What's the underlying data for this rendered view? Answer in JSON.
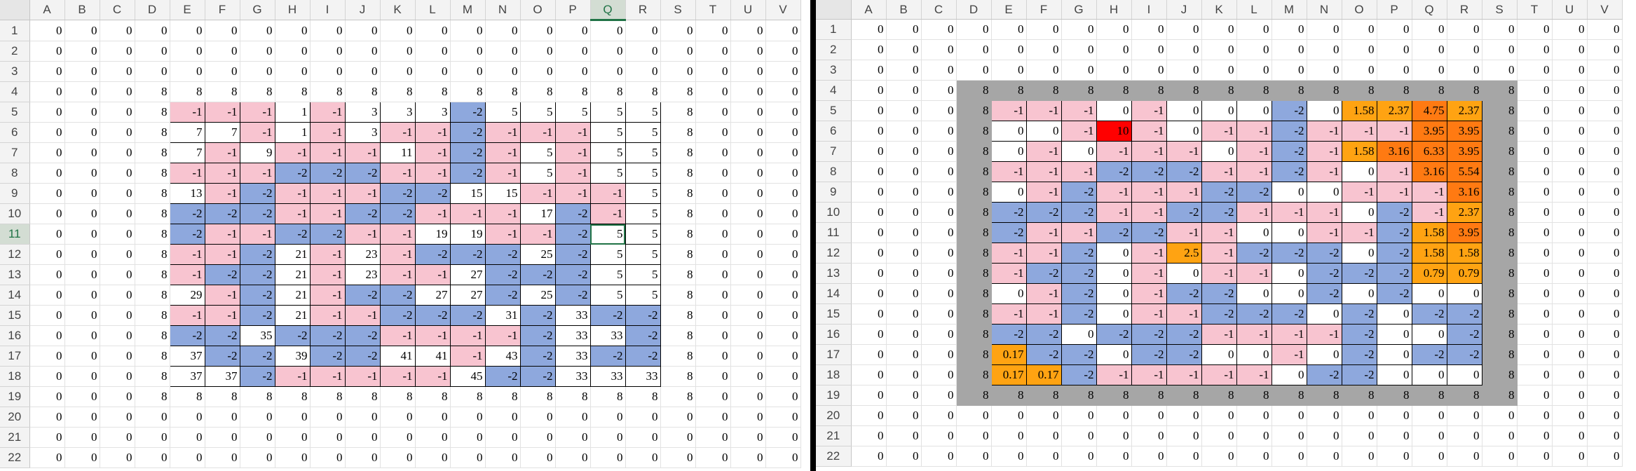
{
  "columns": [
    "A",
    "B",
    "C",
    "D",
    "E",
    "F",
    "G",
    "H",
    "I",
    "J",
    "K",
    "L",
    "M",
    "N",
    "O",
    "P",
    "Q",
    "R",
    "S",
    "T",
    "U",
    "V"
  ],
  "left_sheet": {
    "selected_column": "Q",
    "selected_row": 11,
    "active_cell": "Q11",
    "rows": [
      {
        "n": 1,
        "cells": [
          "0",
          "0",
          "0",
          "0",
          "0",
          "0",
          "0",
          "0",
          "0",
          "0",
          "0",
          "0",
          "0",
          "0",
          "0",
          "0",
          "0",
          "0",
          "0",
          "0",
          "0",
          "0"
        ]
      },
      {
        "n": 2,
        "cells": [
          "0",
          "0",
          "0",
          "0",
          "0",
          "0",
          "0",
          "0",
          "0",
          "0",
          "0",
          "0",
          "0",
          "0",
          "0",
          "0",
          "0",
          "0",
          "0",
          "0",
          "0",
          "0"
        ]
      },
      {
        "n": 3,
        "cells": [
          "0",
          "0",
          "0",
          "0",
          "0",
          "0",
          "0",
          "0",
          "0",
          "0",
          "0",
          "0",
          "0",
          "0",
          "0",
          "0",
          "0",
          "0",
          "0",
          "0",
          "0",
          "0"
        ]
      },
      {
        "n": 4,
        "cells": [
          "0",
          "0",
          "0",
          "8",
          "8",
          "8",
          "8",
          "8",
          "8",
          "8",
          "8",
          "8",
          "8",
          "8",
          "8",
          "8",
          "8",
          "8",
          "8",
          "0",
          "0",
          "0"
        ]
      },
      {
        "n": 5,
        "cells": [
          "0",
          "0",
          "0",
          "8",
          "-1",
          "-1",
          "-1",
          "1",
          "-1",
          "3",
          "3",
          "3",
          "-2",
          "5",
          "5",
          "5",
          "5",
          "5",
          "8",
          "0",
          "0",
          "0"
        ]
      },
      {
        "n": 6,
        "cells": [
          "0",
          "0",
          "0",
          "8",
          "7",
          "7",
          "-1",
          "1",
          "-1",
          "3",
          "-1",
          "-1",
          "-2",
          "-1",
          "-1",
          "-1",
          "5",
          "5",
          "8",
          "0",
          "0",
          "0"
        ]
      },
      {
        "n": 7,
        "cells": [
          "0",
          "0",
          "0",
          "8",
          "7",
          "-1",
          "9",
          "-1",
          "-1",
          "-1",
          "11",
          "-1",
          "-2",
          "-1",
          "5",
          "-1",
          "5",
          "5",
          "8",
          "0",
          "0",
          "0"
        ]
      },
      {
        "n": 8,
        "cells": [
          "0",
          "0",
          "0",
          "8",
          "-1",
          "-1",
          "-1",
          "-2",
          "-2",
          "-2",
          "-1",
          "-1",
          "-2",
          "-1",
          "5",
          "-1",
          "5",
          "5",
          "8",
          "0",
          "0",
          "0"
        ]
      },
      {
        "n": 9,
        "cells": [
          "0",
          "0",
          "0",
          "8",
          "13",
          "-1",
          "-2",
          "-1",
          "-1",
          "-1",
          "-2",
          "-2",
          "15",
          "15",
          "-1",
          "-1",
          "-1",
          "5",
          "8",
          "0",
          "0",
          "0"
        ]
      },
      {
        "n": 10,
        "cells": [
          "0",
          "0",
          "0",
          "8",
          "-2",
          "-2",
          "-2",
          "-1",
          "-1",
          "-2",
          "-2",
          "-1",
          "-1",
          "-1",
          "17",
          "-2",
          "-1",
          "5",
          "8",
          "0",
          "0",
          "0"
        ]
      },
      {
        "n": 11,
        "cells": [
          "0",
          "0",
          "0",
          "8",
          "-2",
          "-1",
          "-1",
          "-2",
          "-2",
          "-1",
          "-1",
          "19",
          "19",
          "-1",
          "-1",
          "-2",
          "5",
          "5",
          "8",
          "0",
          "0",
          "0"
        ]
      },
      {
        "n": 12,
        "cells": [
          "0",
          "0",
          "0",
          "8",
          "-1",
          "-1",
          "-2",
          "21",
          "-1",
          "23",
          "-1",
          "-2",
          "-2",
          "-2",
          "25",
          "-2",
          "5",
          "5",
          "8",
          "0",
          "0",
          "0"
        ]
      },
      {
        "n": 13,
        "cells": [
          "0",
          "0",
          "0",
          "8",
          "-1",
          "-2",
          "-2",
          "21",
          "-1",
          "23",
          "-1",
          "-1",
          "27",
          "-2",
          "-2",
          "-2",
          "5",
          "5",
          "8",
          "0",
          "0",
          "0"
        ]
      },
      {
        "n": 14,
        "cells": [
          "0",
          "0",
          "0",
          "8",
          "29",
          "-1",
          "-2",
          "21",
          "-1",
          "-2",
          "-2",
          "27",
          "27",
          "-2",
          "25",
          "-2",
          "5",
          "5",
          "8",
          "0",
          "0",
          "0"
        ]
      },
      {
        "n": 15,
        "cells": [
          "0",
          "0",
          "0",
          "8",
          "-1",
          "-1",
          "-2",
          "21",
          "-1",
          "-1",
          "-2",
          "-2",
          "-2",
          "31",
          "-2",
          "33",
          "-2",
          "-2",
          "8",
          "0",
          "0",
          "0"
        ]
      },
      {
        "n": 16,
        "cells": [
          "0",
          "0",
          "0",
          "8",
          "-2",
          "-2",
          "35",
          "-2",
          "-2",
          "-2",
          "-1",
          "-1",
          "-1",
          "-1",
          "-2",
          "33",
          "33",
          "-2",
          "8",
          "0",
          "0",
          "0"
        ]
      },
      {
        "n": 17,
        "cells": [
          "0",
          "0",
          "0",
          "8",
          "37",
          "-2",
          "-2",
          "39",
          "-2",
          "-2",
          "41",
          "41",
          "-1",
          "43",
          "-2",
          "33",
          "-2",
          "-2",
          "8",
          "0",
          "0",
          "0"
        ]
      },
      {
        "n": 18,
        "cells": [
          "0",
          "0",
          "0",
          "8",
          "37",
          "37",
          "-2",
          "-1",
          "-1",
          "-1",
          "-1",
          "-1",
          "45",
          "-2",
          "-2",
          "33",
          "33",
          "33",
          "8",
          "0",
          "0",
          "0"
        ]
      },
      {
        "n": 19,
        "cells": [
          "0",
          "0",
          "0",
          "8",
          "8",
          "8",
          "8",
          "8",
          "8",
          "8",
          "8",
          "8",
          "8",
          "8",
          "8",
          "8",
          "8",
          "8",
          "8",
          "0",
          "0",
          "0"
        ]
      },
      {
        "n": 20,
        "cells": [
          "0",
          "0",
          "0",
          "0",
          "0",
          "0",
          "0",
          "0",
          "0",
          "0",
          "0",
          "0",
          "0",
          "0",
          "0",
          "0",
          "0",
          "0",
          "0",
          "0",
          "0",
          "0"
        ]
      },
      {
        "n": 21,
        "cells": [
          "0",
          "0",
          "0",
          "0",
          "0",
          "0",
          "0",
          "0",
          "0",
          "0",
          "0",
          "0",
          "0",
          "0",
          "0",
          "0",
          "0",
          "0",
          "0",
          "0",
          "0",
          "0"
        ]
      },
      {
        "n": 22,
        "cells": [
          "0",
          "0",
          "0",
          "0",
          "0",
          "0",
          "0",
          "0",
          "0",
          "0",
          "0",
          "0",
          "0",
          "0",
          "0",
          "0",
          "0",
          "0",
          "0",
          "0",
          "0",
          "0"
        ]
      }
    ]
  },
  "right_sheet": {
    "rows": [
      {
        "n": 1,
        "cells": [
          "0",
          "0",
          "0",
          "0",
          "0",
          "0",
          "0",
          "0",
          "0",
          "0",
          "0",
          "0",
          "0",
          "0",
          "0",
          "0",
          "0",
          "0",
          "0",
          "0",
          "0",
          "0"
        ]
      },
      {
        "n": 2,
        "cells": [
          "0",
          "0",
          "0",
          "0",
          "0",
          "0",
          "0",
          "0",
          "0",
          "0",
          "0",
          "0",
          "0",
          "0",
          "0",
          "0",
          "0",
          "0",
          "0",
          "0",
          "0",
          "0"
        ]
      },
      {
        "n": 3,
        "cells": [
          "0",
          "0",
          "0",
          "0",
          "0",
          "0",
          "0",
          "0",
          "0",
          "0",
          "0",
          "0",
          "0",
          "0",
          "0",
          "0",
          "0",
          "0",
          "0",
          "0",
          "0",
          "0"
        ]
      },
      {
        "n": 4,
        "cells": [
          "0",
          "0",
          "0",
          "8",
          "8",
          "8",
          "8",
          "8",
          "8",
          "8",
          "8",
          "8",
          "8",
          "8",
          "8",
          "8",
          "8",
          "8",
          "8",
          "0",
          "0",
          "0"
        ]
      },
      {
        "n": 5,
        "cells": [
          "0",
          "0",
          "0",
          "8",
          "-1",
          "-1",
          "-1",
          "0",
          "-1",
          "0",
          "0",
          "0",
          "-2",
          "0",
          "1.58",
          "2.37",
          "4.75",
          "2.37",
          "8",
          "0",
          "0",
          "0"
        ]
      },
      {
        "n": 6,
        "cells": [
          "0",
          "0",
          "0",
          "8",
          "0",
          "0",
          "-1",
          "10",
          "-1",
          "0",
          "-1",
          "-1",
          "-2",
          "-1",
          "-1",
          "-1",
          "3.95",
          "3.95",
          "8",
          "0",
          "0",
          "0"
        ]
      },
      {
        "n": 7,
        "cells": [
          "0",
          "0",
          "0",
          "8",
          "0",
          "-1",
          "0",
          "-1",
          "-1",
          "-1",
          "0",
          "-1",
          "-2",
          "-1",
          "1.58",
          "3.16",
          "6.33",
          "3.95",
          "8",
          "0",
          "0",
          "0"
        ]
      },
      {
        "n": 8,
        "cells": [
          "0",
          "0",
          "0",
          "8",
          "-1",
          "-1",
          "-1",
          "-2",
          "-2",
          "-2",
          "-1",
          "-1",
          "-2",
          "-1",
          "0",
          "-1",
          "3.16",
          "5.54",
          "8",
          "0",
          "0",
          "0"
        ]
      },
      {
        "n": 9,
        "cells": [
          "0",
          "0",
          "0",
          "8",
          "0",
          "-1",
          "-2",
          "-1",
          "-1",
          "-1",
          "-2",
          "-2",
          "0",
          "0",
          "-1",
          "-1",
          "-1",
          "3.16",
          "8",
          "0",
          "0",
          "0"
        ]
      },
      {
        "n": 10,
        "cells": [
          "0",
          "0",
          "0",
          "8",
          "-2",
          "-2",
          "-2",
          "-1",
          "-1",
          "-2",
          "-2",
          "-1",
          "-1",
          "-1",
          "0",
          "-2",
          "-1",
          "2.37",
          "8",
          "0",
          "0",
          "0"
        ]
      },
      {
        "n": 11,
        "cells": [
          "0",
          "0",
          "0",
          "8",
          "-2",
          "-1",
          "-1",
          "-2",
          "-2",
          "-1",
          "-1",
          "0",
          "0",
          "-1",
          "-1",
          "-2",
          "1.58",
          "3.95",
          "8",
          "0",
          "0",
          "0"
        ]
      },
      {
        "n": 12,
        "cells": [
          "0",
          "0",
          "0",
          "8",
          "-1",
          "-1",
          "-2",
          "0",
          "-1",
          "2.5",
          "-1",
          "-2",
          "-2",
          "-2",
          "0",
          "-2",
          "1.58",
          "1.58",
          "8",
          "0",
          "0",
          "0"
        ]
      },
      {
        "n": 13,
        "cells": [
          "0",
          "0",
          "0",
          "8",
          "-1",
          "-2",
          "-2",
          "0",
          "-1",
          "0",
          "-1",
          "-1",
          "0",
          "-2",
          "-2",
          "-2",
          "0.79",
          "0.79",
          "8",
          "0",
          "0",
          "0"
        ]
      },
      {
        "n": 14,
        "cells": [
          "0",
          "0",
          "0",
          "8",
          "0",
          "-1",
          "-2",
          "0",
          "-1",
          "-2",
          "-2",
          "0",
          "0",
          "-2",
          "0",
          "-2",
          "0",
          "0",
          "8",
          "0",
          "0",
          "0"
        ]
      },
      {
        "n": 15,
        "cells": [
          "0",
          "0",
          "0",
          "8",
          "-1",
          "-1",
          "-2",
          "0",
          "-1",
          "-1",
          "-2",
          "-2",
          "-2",
          "0",
          "-2",
          "0",
          "-2",
          "-2",
          "8",
          "0",
          "0",
          "0"
        ]
      },
      {
        "n": 16,
        "cells": [
          "0",
          "0",
          "0",
          "8",
          "-2",
          "-2",
          "0",
          "-2",
          "-2",
          "-2",
          "-1",
          "-1",
          "-1",
          "-1",
          "-2",
          "0",
          "0",
          "-2",
          "8",
          "0",
          "0",
          "0"
        ]
      },
      {
        "n": 17,
        "cells": [
          "0",
          "0",
          "0",
          "8",
          "0.17",
          "-2",
          "-2",
          "0",
          "-2",
          "-2",
          "0",
          "0",
          "-1",
          "0",
          "-2",
          "0",
          "-2",
          "-2",
          "8",
          "0",
          "0",
          "0"
        ]
      },
      {
        "n": 18,
        "cells": [
          "0",
          "0",
          "0",
          "8",
          "0.17",
          "0.17",
          "-2",
          "-1",
          "-1",
          "-1",
          "-1",
          "-1",
          "0",
          "-2",
          "-2",
          "0",
          "0",
          "0",
          "8",
          "0",
          "0",
          "0"
        ]
      },
      {
        "n": 19,
        "cells": [
          "0",
          "0",
          "0",
          "8",
          "8",
          "8",
          "8",
          "8",
          "8",
          "8",
          "8",
          "8",
          "8",
          "8",
          "8",
          "8",
          "8",
          "8",
          "8",
          "0",
          "0",
          "0"
        ]
      },
      {
        "n": 20,
        "cells": [
          "0",
          "0",
          "0",
          "0",
          "0",
          "0",
          "0",
          "0",
          "0",
          "0",
          "0",
          "0",
          "0",
          "0",
          "0",
          "0",
          "0",
          "0",
          "0",
          "0",
          "0",
          "0"
        ]
      },
      {
        "n": 21,
        "cells": [
          "0",
          "0",
          "0",
          "0",
          "0",
          "0",
          "0",
          "0",
          "0",
          "0",
          "0",
          "0",
          "0",
          "0",
          "0",
          "0",
          "0",
          "0",
          "0",
          "0",
          "0",
          "0"
        ]
      },
      {
        "n": 22,
        "cells": [
          "0",
          "0",
          "0",
          "0",
          "0",
          "0",
          "0",
          "0",
          "0",
          "0",
          "0",
          "0",
          "0",
          "0",
          "0",
          "0",
          "0",
          "0",
          "0",
          "0",
          "0",
          "0"
        ]
      }
    ]
  },
  "colors": {
    "pink": "#f8c4d0",
    "blue": "#8ea8dd",
    "orange": "#ffa312",
    "dark_orange": "#ff7a12",
    "red": "#ff0000",
    "gray_border": "#a6a6a6",
    "selection_green": "#217346"
  }
}
